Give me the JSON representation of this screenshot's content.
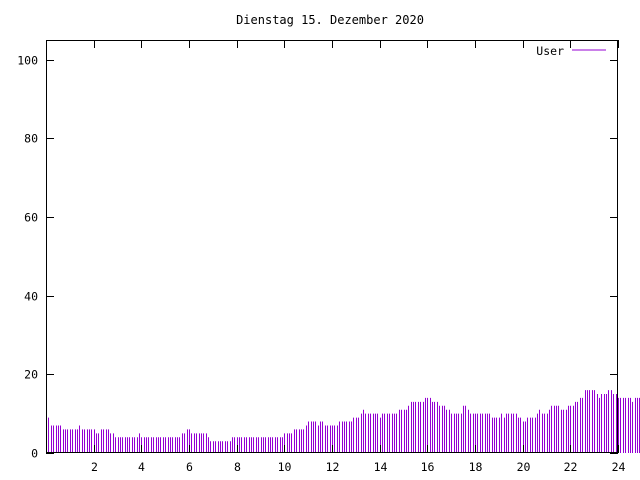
{
  "colors": {
    "series": "#9400d3",
    "axis": "#000000",
    "background": "#ffffff"
  },
  "chart_data": {
    "type": "bar",
    "title": "Dienstag 15. Dezember 2020",
    "xlabel": "",
    "ylabel": "",
    "xlim": [
      0,
      24
    ],
    "ylim": [
      0,
      105
    ],
    "xticks": [
      2,
      4,
      6,
      8,
      10,
      12,
      14,
      16,
      18,
      20,
      22,
      24
    ],
    "yticks": [
      0,
      20,
      40,
      60,
      80,
      100
    ],
    "grid": false,
    "legend_position": "top-right",
    "sample_interval_hours": 0.1,
    "series": [
      {
        "name": "User",
        "values": [
          10,
          9,
          7,
          7,
          7,
          7,
          7,
          6,
          6,
          6,
          6,
          6,
          6,
          6,
          7,
          6,
          6,
          6,
          6,
          6,
          6,
          5,
          5,
          6,
          6,
          6,
          6,
          5,
          5,
          4,
          4,
          4,
          4,
          4,
          4,
          4,
          4,
          4,
          4,
          5,
          4,
          4,
          4,
          4,
          4,
          4,
          4,
          4,
          4,
          4,
          4,
          4,
          4,
          4,
          4,
          4,
          4,
          5,
          5,
          6,
          6,
          5,
          5,
          5,
          5,
          5,
          5,
          5,
          4,
          3,
          3,
          3,
          3,
          3,
          3,
          3,
          3,
          3,
          4,
          4,
          4,
          4,
          4,
          4,
          4,
          4,
          4,
          4,
          4,
          4,
          4,
          4,
          4,
          4,
          4,
          4,
          4,
          4,
          4,
          4,
          5,
          5,
          5,
          5,
          6,
          6,
          6,
          6,
          6,
          7,
          8,
          8,
          8,
          8,
          7,
          8,
          8,
          7,
          7,
          7,
          7,
          7,
          7,
          8,
          8,
          8,
          8,
          8,
          8,
          9,
          9,
          9,
          10,
          11,
          10,
          10,
          10,
          10,
          10,
          10,
          9,
          10,
          10,
          10,
          10,
          10,
          10,
          10,
          11,
          11,
          11,
          11,
          12,
          13,
          13,
          13,
          13,
          13,
          13,
          14,
          14,
          14,
          13,
          13,
          13,
          12,
          12,
          12,
          11,
          11,
          10,
          10,
          10,
          10,
          10,
          12,
          12,
          11,
          10,
          10,
          10,
          10,
          10,
          10,
          10,
          10,
          10,
          9,
          9,
          9,
          9,
          10,
          9,
          10,
          10,
          10,
          10,
          10,
          9,
          9,
          8,
          8,
          9,
          9,
          9,
          9,
          10,
          11,
          10,
          10,
          10,
          11,
          12,
          12,
          12,
          12,
          11,
          11,
          11,
          12,
          12,
          12,
          13,
          13,
          14,
          14,
          16,
          16,
          16,
          16,
          16,
          15,
          14,
          15,
          15,
          15,
          16,
          16,
          15,
          15,
          14,
          14,
          14,
          14,
          14,
          14,
          13,
          14,
          14,
          14,
          14,
          14
        ]
      }
    ]
  }
}
